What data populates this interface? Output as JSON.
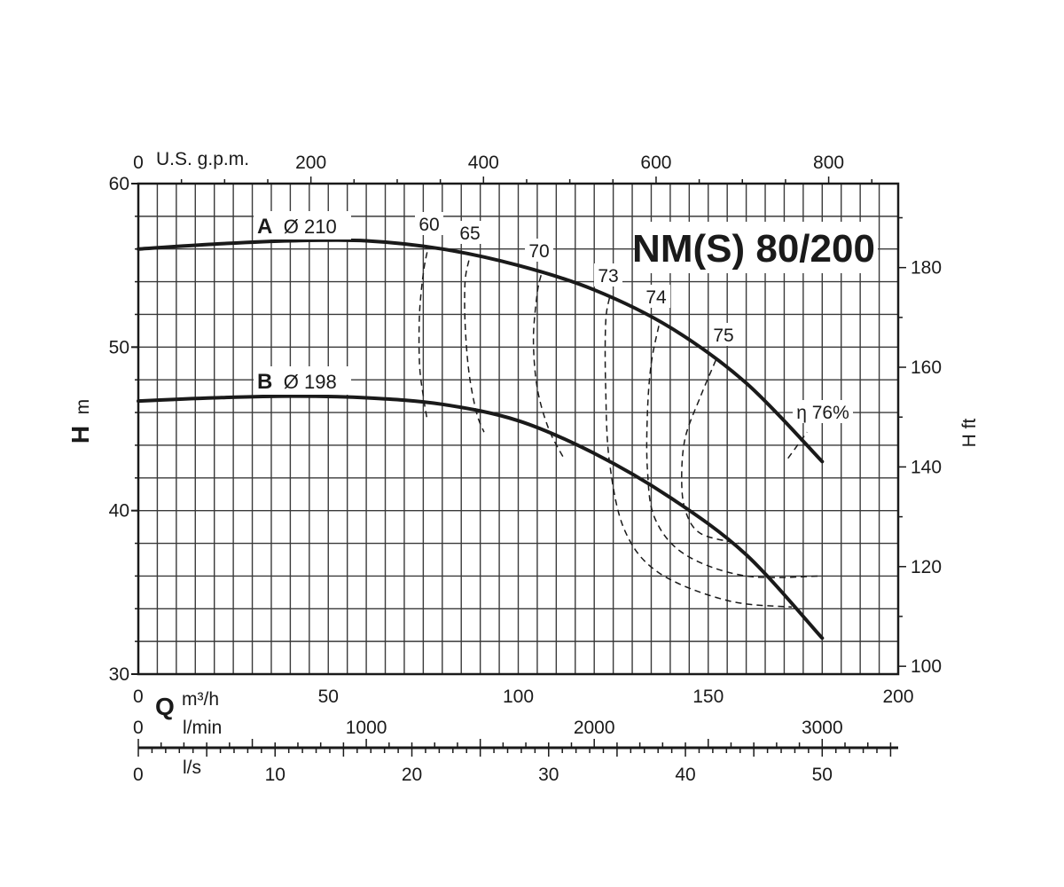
{
  "chart_data": {
    "type": "line",
    "title": "NM(S) 80/200",
    "xlabel": "Q",
    "ylabel": "H",
    "y_unit": "m",
    "y2_unit": "H ft",
    "x_unit": "m³/h",
    "xlim": [
      0,
      200
    ],
    "ylim": [
      30,
      60
    ],
    "x_ticks": [
      "0",
      "50",
      "100",
      "150",
      "200"
    ],
    "y_ticks": [
      "30",
      "40",
      "50",
      "60"
    ],
    "grid": true,
    "secondary_axes": {
      "top": {
        "unit": "U.S. g.p.m.",
        "ticks": [
          0,
          200,
          400,
          600,
          800
        ],
        "ticks_text": [
          "0",
          "200",
          "400",
          "600",
          "800"
        ]
      },
      "right": {
        "unit": "H ft",
        "ticks": [
          100,
          120,
          140,
          160,
          180
        ],
        "ticks_text": [
          "100",
          "120",
          "140",
          "160",
          "180"
        ]
      },
      "lmin": {
        "unit": "l/min",
        "ticks": [
          0,
          1000,
          2000,
          3000
        ],
        "ticks_text": [
          "0",
          "1000",
          "2000",
          "3000"
        ]
      },
      "ls": {
        "unit": "l/s",
        "ticks": [
          0,
          10,
          20,
          30,
          40,
          50
        ],
        "ticks_text": [
          "0",
          "10",
          "20",
          "30",
          "40",
          "50"
        ]
      }
    },
    "series": [
      {
        "name": "A",
        "diameter": "Ø 210",
        "x": [
          0,
          20,
          40,
          60,
          80,
          100,
          120,
          140,
          160,
          180
        ],
        "y": [
          56.0,
          56.3,
          56.5,
          56.5,
          56.0,
          55.0,
          53.5,
          51.2,
          47.8,
          43.0
        ]
      },
      {
        "name": "B",
        "diameter": "Ø 198",
        "x": [
          0,
          20,
          40,
          60,
          80,
          100,
          120,
          140,
          160,
          180
        ],
        "y": [
          46.7,
          46.9,
          47.0,
          46.9,
          46.5,
          45.5,
          43.5,
          40.8,
          37.3,
          32.2
        ]
      }
    ],
    "efficiency_curves": [
      {
        "label": "60",
        "x": [
          76,
          75,
          74,
          74,
          75,
          76
        ],
        "y": [
          55.8,
          54.5,
          52.0,
          49.0,
          47.0,
          45.6
        ]
      },
      {
        "label": "65",
        "x": [
          87,
          86,
          86,
          87,
          89,
          91
        ],
        "y": [
          55.3,
          54.0,
          51.5,
          48.5,
          46.0,
          44.8
        ]
      },
      {
        "label": "70",
        "x": [
          106,
          105,
          104,
          105,
          108,
          112
        ],
        "y": [
          54.4,
          53.3,
          50.5,
          47.5,
          45.0,
          43.2
        ]
      },
      {
        "label": "73",
        "x": [
          124,
          123,
          123,
          124,
          128,
          137,
          155,
          172
        ],
        "y": [
          53.0,
          51.5,
          47.5,
          43.0,
          38.8,
          36.2,
          34.5,
          34.1
        ]
      },
      {
        "label": "74",
        "x": [
          137,
          135,
          134,
          134,
          136,
          144,
          160,
          180
        ],
        "y": [
          51.3,
          49.0,
          46.0,
          42.5,
          39.5,
          37.3,
          36.0,
          36.0
        ]
      },
      {
        "label": "75",
        "x": [
          152,
          148,
          144,
          143,
          144,
          148,
          158
        ],
        "y": [
          49.2,
          47.0,
          44.5,
          42.0,
          40.0,
          38.6,
          38.0
        ]
      },
      {
        "label": "η 76%",
        "x": [
          171,
          176
        ],
        "y": [
          43.2,
          44.8
        ]
      }
    ]
  }
}
